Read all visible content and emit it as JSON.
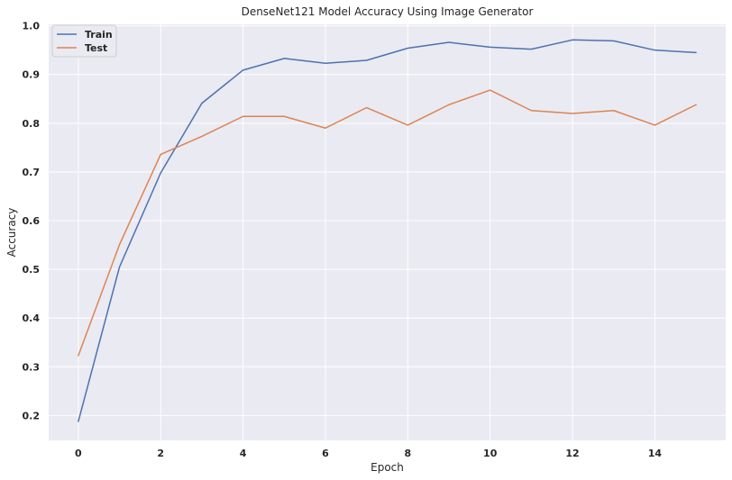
{
  "chart_data": {
    "type": "line",
    "title": "DenseNet121 Model Accuracy Using Image Generator",
    "xlabel": "Epoch",
    "ylabel": "Accuracy",
    "x": [
      0,
      1,
      2,
      3,
      4,
      5,
      6,
      7,
      8,
      9,
      10,
      11,
      12,
      13,
      14,
      15
    ],
    "xticks": [
      0,
      2,
      4,
      6,
      8,
      10,
      12,
      14
    ],
    "yticks": [
      0.2,
      0.3,
      0.4,
      0.5,
      0.6,
      0.7,
      0.8,
      0.9,
      1.0
    ],
    "ytick_labels": [
      "0.2",
      "0.3",
      "0.4",
      "0.5",
      "0.6",
      "0.7",
      "0.8",
      "0.9",
      "1.0"
    ],
    "xlim": [
      -0.72,
      15.72
    ],
    "ylim": [
      0.149,
      1.003
    ],
    "grid": true,
    "legend_position": "top-left",
    "series": [
      {
        "name": "Train",
        "color": "#4c72b0",
        "values": [
          0.188,
          0.505,
          0.698,
          0.841,
          0.909,
          0.933,
          0.923,
          0.929,
          0.954,
          0.966,
          0.956,
          0.952,
          0.971,
          0.969,
          0.95,
          0.945
        ]
      },
      {
        "name": "Test",
        "color": "#dd8452",
        "values": [
          0.323,
          0.551,
          0.736,
          0.773,
          0.814,
          0.814,
          0.79,
          0.832,
          0.796,
          0.838,
          0.868,
          0.826,
          0.82,
          0.826,
          0.796,
          0.838
        ]
      }
    ]
  }
}
